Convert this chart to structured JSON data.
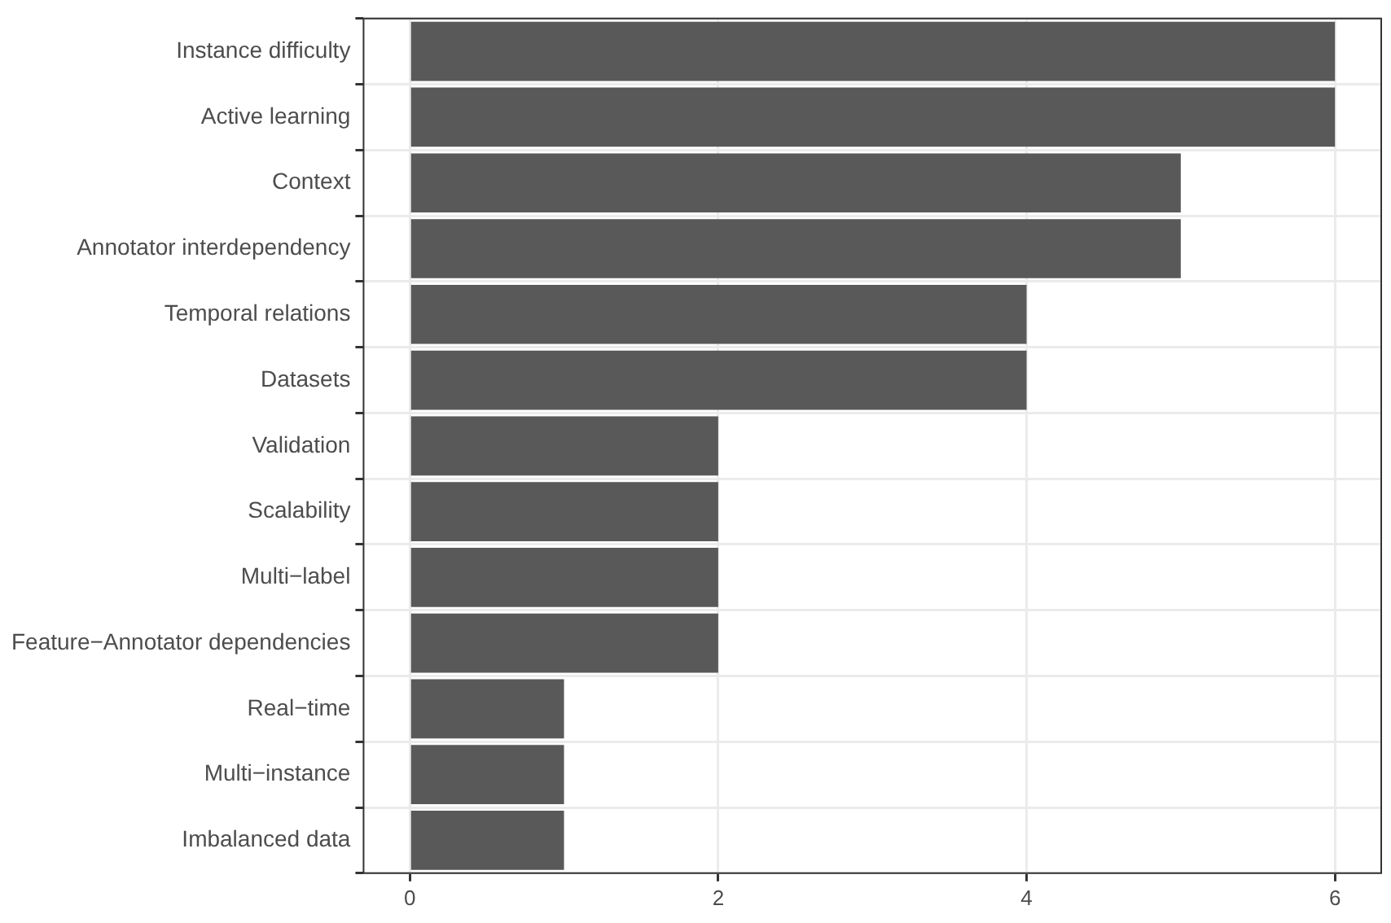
{
  "chart_data": {
    "type": "bar",
    "orientation": "horizontal",
    "categories": [
      "Instance difficulty",
      "Active learning",
      "Context",
      "Annotator interdependency",
      "Temporal relations",
      "Datasets",
      "Validation",
      "Scalability",
      "Multi−label",
      "Feature−Annotator dependencies",
      "Real−time",
      "Multi−instance",
      "Imbalanced data"
    ],
    "values": [
      6,
      6,
      5,
      5,
      4,
      4,
      2,
      2,
      2,
      2,
      1,
      1,
      1
    ],
    "color": "#595959",
    "xlim": [
      -0.3,
      6.3
    ],
    "xticks": [
      0,
      2,
      4,
      6
    ],
    "grid": true,
    "legend": false
  }
}
